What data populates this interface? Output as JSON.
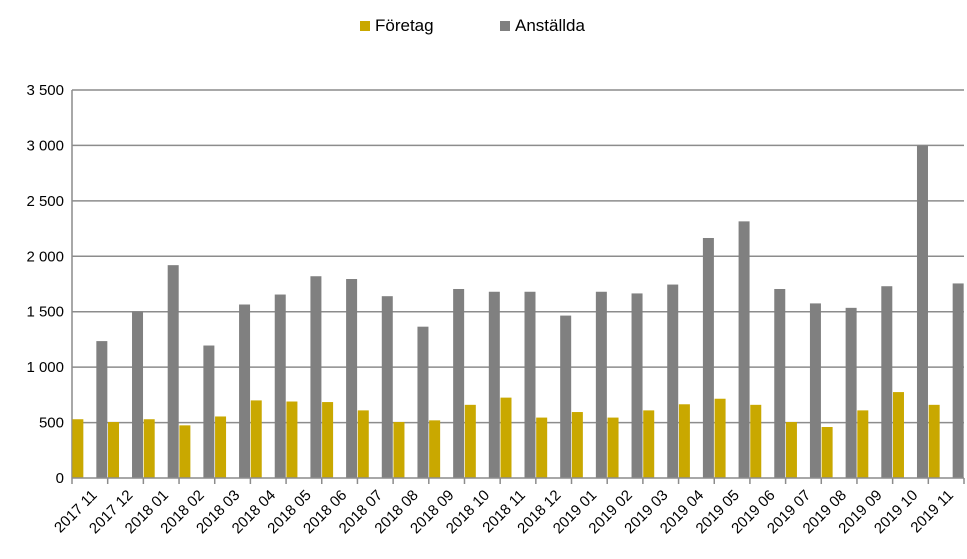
{
  "chart_data": {
    "type": "bar",
    "title": "",
    "xlabel": "",
    "ylabel": "",
    "categories": [
      "2017 11",
      "2017 12",
      "2018 01",
      "2018 02",
      "2018 03",
      "2018 04",
      "2018 05",
      "2018 06",
      "2018 07",
      "2018 08",
      "2018 09",
      "2018 10",
      "2018 11",
      "2018 12",
      "2019 01",
      "2019 02",
      "2019 03",
      "2019 04",
      "2019 05",
      "2019 06",
      "2019 07",
      "2019 08",
      "2019 09",
      "2019 10",
      "2019 11"
    ],
    "series": [
      {
        "name": "Företag",
        "color": "#C9A800",
        "values": [
          530,
          505,
          530,
          475,
          555,
          700,
          690,
          685,
          610,
          505,
          520,
          660,
          725,
          545,
          595,
          545,
          610,
          665,
          715,
          660,
          505,
          460,
          610,
          775,
          660
        ]
      },
      {
        "name": "Anställda",
        "color": "#808080",
        "values": [
          1235,
          1500,
          1920,
          1195,
          1565,
          1655,
          1820,
          1795,
          1640,
          1365,
          1705,
          1680,
          1680,
          1465,
          1680,
          1665,
          1745,
          2165,
          2315,
          1705,
          1575,
          1535,
          1730,
          3000,
          1755
        ]
      }
    ],
    "ylim": [
      0,
      3500
    ],
    "y_ticks": [
      0,
      500,
      1000,
      1500,
      2000,
      2500,
      3000,
      3500
    ],
    "y_tick_labels": [
      "0",
      "500",
      "1 000",
      "1 500",
      "2 000",
      "2 500",
      "3 000",
      "3 500"
    ],
    "grid": "horizontal",
    "legend_position": "top-center",
    "x_tick_rotation": -45
  }
}
